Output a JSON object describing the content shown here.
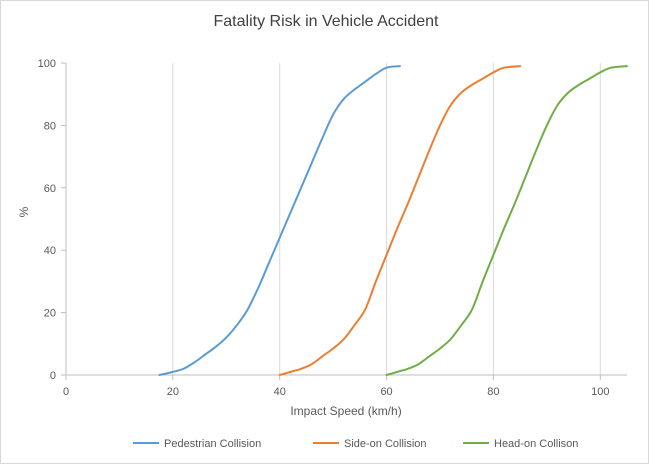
{
  "chart_data": {
    "type": "line",
    "title": "Fatality Risk in Vehicle Accident",
    "xlabel": "Impact Speed (km/h)",
    "ylabel": "%",
    "xlim": [
      0,
      105
    ],
    "ylim": [
      0,
      100
    ],
    "xticks": [
      0,
      20,
      40,
      60,
      80,
      100
    ],
    "yticks": [
      0,
      20,
      40,
      60,
      80,
      100
    ],
    "grid": "vertical",
    "legend_position": "bottom",
    "series": [
      {
        "name": "Pedestrian Collision",
        "color": "#5b9bd5",
        "x": [
          17.5,
          20,
          22,
          24,
          26,
          28,
          30,
          32,
          34,
          36,
          38,
          40,
          42,
          44,
          46,
          48,
          50,
          52,
          54,
          56,
          58,
          60,
          62.5
        ],
        "y": [
          0,
          1,
          2,
          4,
          6.5,
          9,
          12,
          16,
          21,
          28,
          36,
          44,
          52,
          60,
          68,
          76,
          83.5,
          88.5,
          91.5,
          94,
          96.5,
          98.5,
          99
        ]
      },
      {
        "name": "Side-on Collision",
        "color": "#ed7d31",
        "x": [
          40,
          42,
          44,
          46,
          48,
          50,
          52,
          54,
          56,
          58,
          60,
          62,
          64,
          66,
          68,
          70,
          72,
          74,
          76,
          78,
          80,
          82,
          85
        ],
        "y": [
          0,
          1,
          2,
          3.5,
          6,
          8.5,
          11.5,
          16,
          21,
          30,
          38.5,
          47,
          55,
          63.5,
          72,
          80,
          86.5,
          90.5,
          93,
          95,
          97,
          98.5,
          99
        ]
      },
      {
        "name": "Head-on Collison",
        "color": "#70ad47",
        "x": [
          60,
          62,
          64,
          66,
          68,
          70,
          72,
          74,
          76,
          78,
          80,
          82,
          84,
          86,
          88,
          90,
          92,
          94,
          96,
          98,
          100,
          102,
          105
        ],
        "y": [
          0,
          1,
          2,
          3.5,
          6,
          8.5,
          11.5,
          16,
          21,
          30,
          38.5,
          47,
          55,
          63.5,
          72,
          80,
          86.5,
          90.5,
          93,
          95,
          97,
          98.5,
          99
        ]
      }
    ]
  }
}
